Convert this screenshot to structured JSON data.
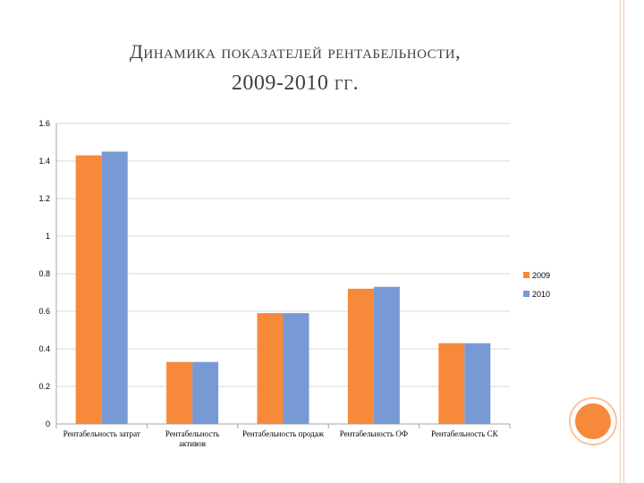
{
  "slide": {
    "title_line1": "Динамика показателей рентабельности,",
    "title_line2": "2009-2010 гг."
  },
  "colors": {
    "series_2009": "#f7893b",
    "series_2010": "#7799d4",
    "gridline": "#d9d9d9",
    "axis": "#a6a6a6",
    "frame": "#f3c9b3",
    "circle_fill": "#f7893b",
    "circle_ring": "#f9c3a0"
  },
  "chart_data": {
    "type": "bar",
    "title": "",
    "xlabel": "",
    "ylabel": "",
    "ylim": [
      0,
      1.6
    ],
    "yticks": [
      "0",
      "0.2",
      "0.4",
      "0.6",
      "0.8",
      "1",
      "1.2",
      "1.4",
      "1.6"
    ],
    "grid": true,
    "legend_position": "right",
    "categories": [
      [
        "Рентабельность затрат"
      ],
      [
        "Рентабельность",
        "активов"
      ],
      [
        "Рентабельность продаж"
      ],
      [
        "Рентабельность ОФ"
      ],
      [
        "Рентабельность СК"
      ]
    ],
    "series": [
      {
        "name": "2009",
        "values": [
          1.43,
          0.33,
          0.59,
          0.72,
          0.43
        ]
      },
      {
        "name": "2010",
        "values": [
          1.45,
          0.33,
          0.59,
          0.73,
          0.43
        ]
      }
    ]
  }
}
